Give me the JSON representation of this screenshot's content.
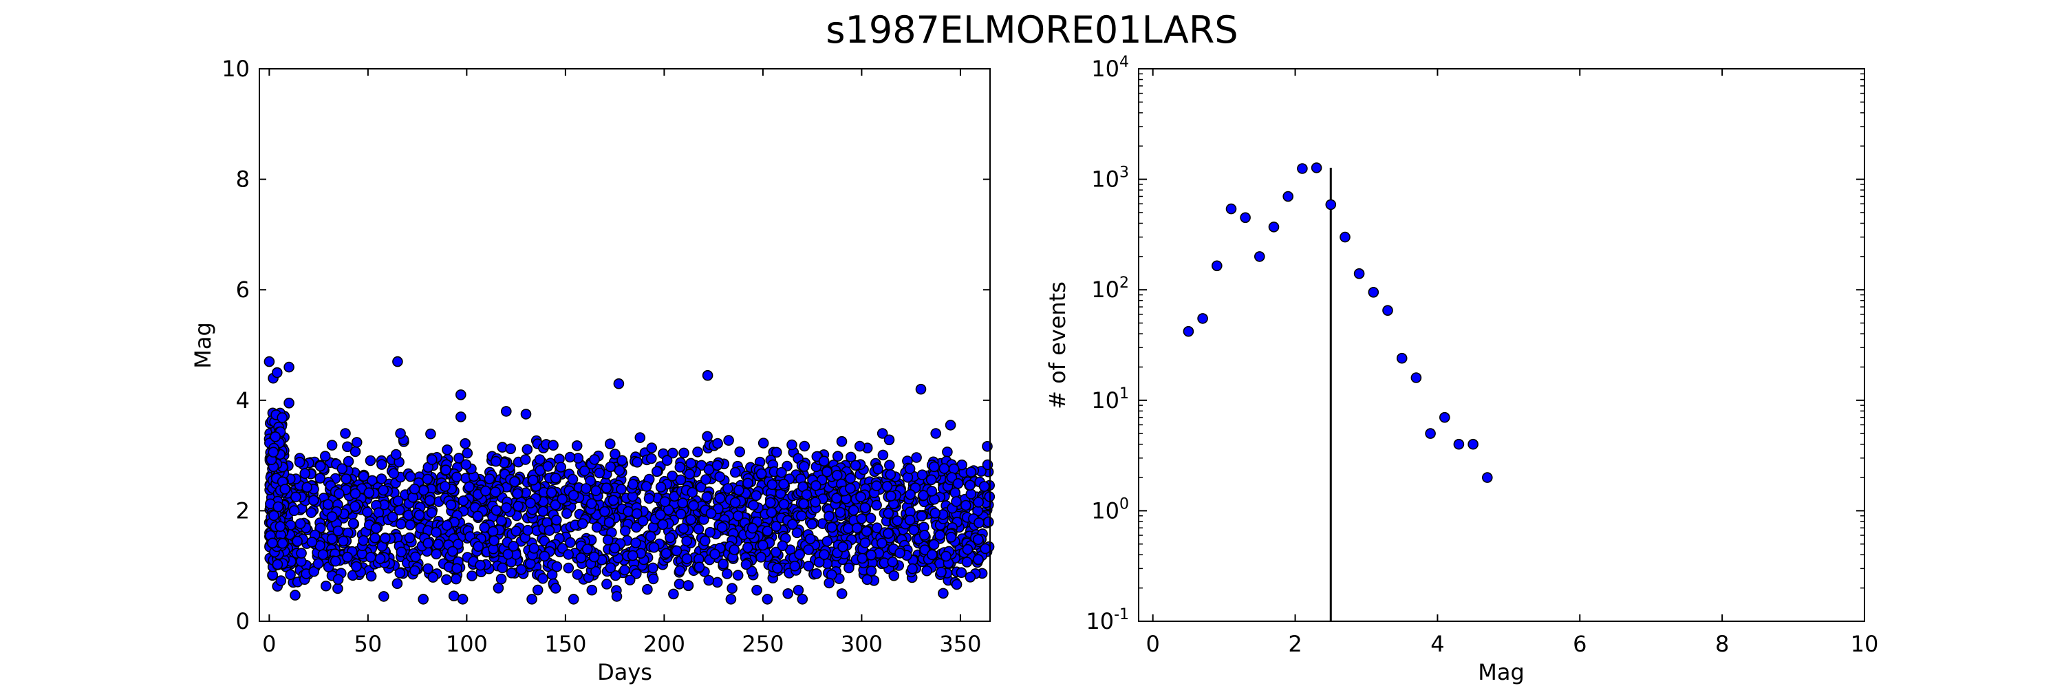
{
  "title": "s1987ELMORE01LARS",
  "colors": {
    "marker_fill": "#0000ff",
    "marker_edge": "#000000",
    "line": "#000000"
  },
  "chart_data": [
    {
      "type": "scatter",
      "xlabel": "Days",
      "ylabel": "Mag",
      "xlim": [
        -5,
        365
      ],
      "ylim": [
        0,
        10
      ],
      "xticks": [
        0,
        50,
        100,
        150,
        200,
        250,
        300,
        350
      ],
      "yticks": [
        0,
        2,
        4,
        6,
        8,
        10
      ],
      "bands": [
        {
          "x_range": [
            0,
            365
          ],
          "y_mean": 2.2,
          "y_spread": 0.45,
          "density_per_day": 12
        },
        {
          "x_range": [
            0,
            365
          ],
          "y_mean": 1.2,
          "y_spread": 0.3,
          "density_per_day": 6
        }
      ],
      "outliers": [
        {
          "x": 0,
          "y": 4.7
        },
        {
          "x": 2,
          "y": 4.4
        },
        {
          "x": 4,
          "y": 4.5
        },
        {
          "x": 10,
          "y": 4.6
        },
        {
          "x": 10,
          "y": 3.95
        },
        {
          "x": 65,
          "y": 4.7
        },
        {
          "x": 97,
          "y": 4.1
        },
        {
          "x": 97,
          "y": 3.7
        },
        {
          "x": 120,
          "y": 3.8
        },
        {
          "x": 130,
          "y": 3.75
        },
        {
          "x": 177,
          "y": 4.3
        },
        {
          "x": 222,
          "y": 4.45
        },
        {
          "x": 330,
          "y": 4.2
        },
        {
          "x": 345,
          "y": 3.55
        },
        {
          "x": 58,
          "y": 0.45
        },
        {
          "x": 78,
          "y": 0.4
        },
        {
          "x": 98,
          "y": 0.4
        },
        {
          "x": 133,
          "y": 0.4
        },
        {
          "x": 176,
          "y": 0.45
        },
        {
          "x": 270,
          "y": 0.4
        },
        {
          "x": 290,
          "y": 0.5
        },
        {
          "x": 355,
          "y": 0.8
        }
      ]
    },
    {
      "type": "scatter",
      "xlabel": "Mag",
      "ylabel": "# of events",
      "xlim": [
        -0.2,
        10
      ],
      "ylim": [
        0.1,
        10000
      ],
      "yscale": "log",
      "xticks": [
        0,
        2,
        4,
        6,
        8,
        10
      ],
      "ytick_exponents": [
        -1,
        0,
        1,
        2,
        3,
        4
      ],
      "x": [
        0.5,
        0.7,
        0.9,
        1.1,
        1.3,
        1.5,
        1.7,
        1.9,
        2.1,
        2.3,
        2.5,
        2.7,
        2.9,
        3.1,
        3.3,
        3.5,
        3.7,
        3.9,
        4.1,
        4.3,
        4.5,
        4.7
      ],
      "y": [
        42,
        55,
        165,
        540,
        450,
        200,
        370,
        700,
        1250,
        1270,
        590,
        300,
        140,
        95,
        65,
        24,
        16,
        5,
        7,
        4,
        4,
        2
      ],
      "vline": {
        "x": 2.5,
        "y_top": 1270
      }
    }
  ]
}
